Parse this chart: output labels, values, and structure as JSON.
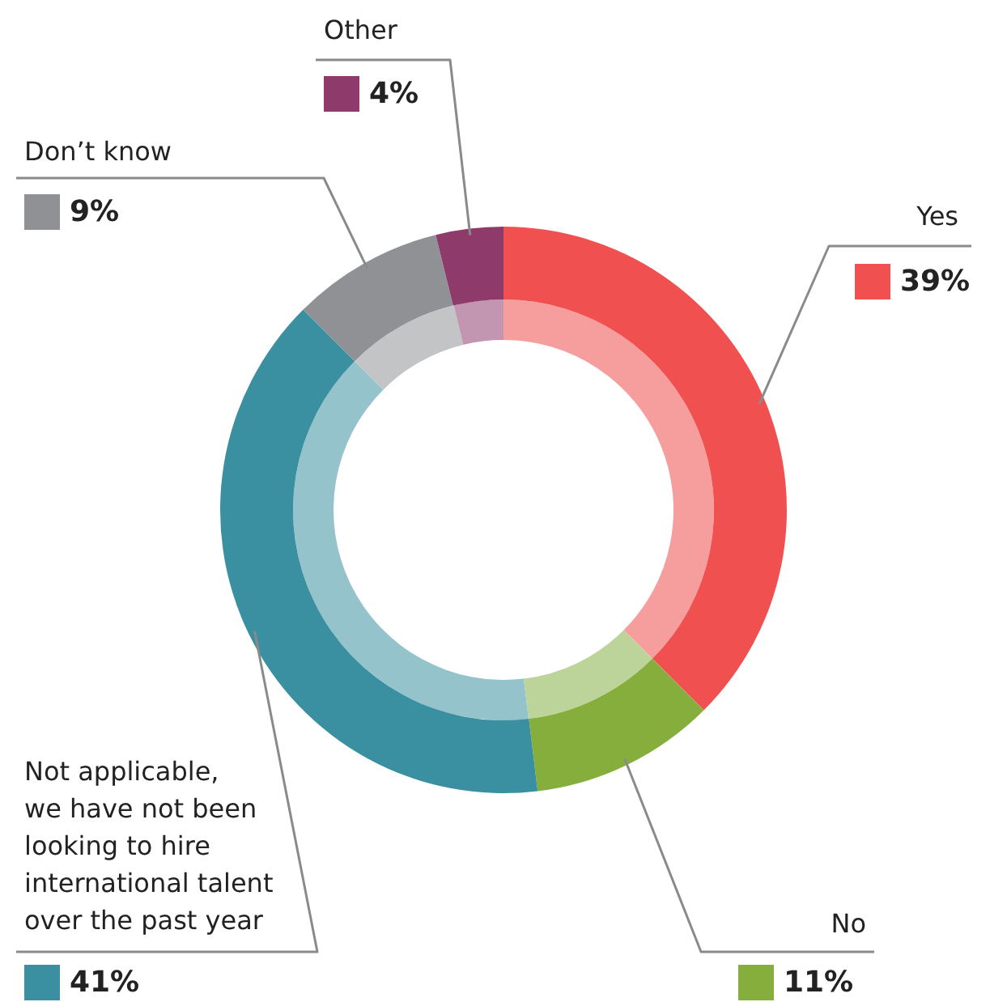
{
  "chart_data": {
    "type": "donut",
    "categories": [
      "Yes",
      "No",
      "Not applicable,\nwe have not been\nlooking to hire\ninternational talent\nover the past year",
      "Don’t know",
      "Other"
    ],
    "series": [
      {
        "values": [
          39,
          11,
          41,
          9,
          4
        ],
        "colors": [
          "#f0504f",
          "#86ae3c",
          "#3a8fa0",
          "#8f9194",
          "#8e3a6a"
        ],
        "value_labels": [
          "39%",
          "11%",
          "41%",
          "9%",
          "4%"
        ]
      },
      {
        "values": [
          37.5,
          10.6,
          39.4,
          8.7,
          3.8
        ],
        "colors": [
          "#f69e9d",
          "#bcd499",
          "#95c3cc",
          "#c3c4c6",
          "#c296b0"
        ]
      }
    ],
    "legend": false
  }
}
